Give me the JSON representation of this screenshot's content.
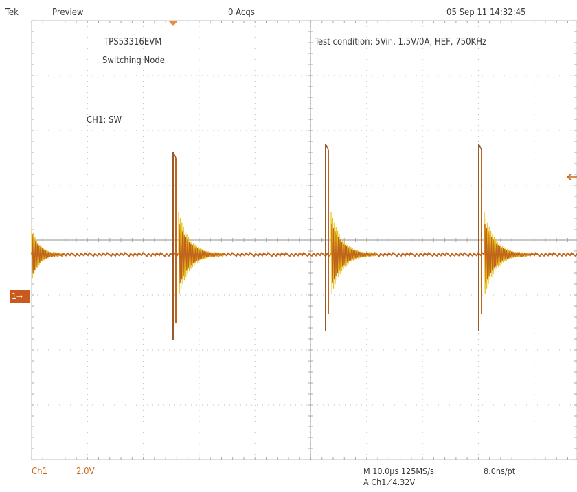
{
  "header": {
    "brand": "Tek",
    "mode": "Preview",
    "acqs": "0 Acqs",
    "datetime": "05 Sep 11 14:32:45"
  },
  "annotations": {
    "board": "TPS53316EVM",
    "node": "Switching Node",
    "channel_label": "CH1: SW",
    "test_condition": "Test condition: 5Vin, 1.5V/0A, HEF, 750KHz"
  },
  "channel_marker": {
    "label": "1",
    "arrow": "→"
  },
  "footer": {
    "channel": "Ch1",
    "volts_per_div": "2.0V",
    "timebase": "M 10.0µs 125MS/s",
    "sample_interval": "8.0ns/pt",
    "trigger": "A  Ch1  ⁄  4.32V"
  },
  "colors": {
    "grid": "#bdbdbd",
    "trace_orange": "#c0641c",
    "trace_yellow": "#e8c21c",
    "trace_brown": "#9a5a2a",
    "marker": "#c95a1e"
  },
  "waveform": {
    "switching_edges": 3,
    "baseline": "steady",
    "ringing": "damped oscillation after each switching edge"
  }
}
